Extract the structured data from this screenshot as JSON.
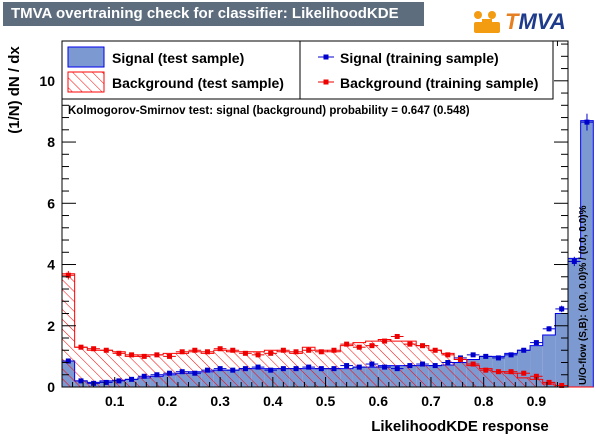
{
  "header": {
    "title": "TMVA overtraining check for classifier: LikelihoodKDE"
  },
  "logo": {
    "letter_t": "T",
    "letters_mva": "MVA"
  },
  "colors": {
    "signal_fill": "#7d99d1",
    "signal_edge": "#0000ee",
    "background_hatch": "#ff0000",
    "title_bar": "#5d6d7e",
    "signal_marker": "#0000cc",
    "background_marker": "#ee0000"
  },
  "chart_data": {
    "type": "bar",
    "xlabel": "LikelihoodKDE response",
    "ylabel": "(1/N) dN / dx",
    "xlim": [
      0.0,
      0.96
    ],
    "ylim": [
      0,
      11.3
    ],
    "bin_width": 0.024,
    "x_ticks": [
      0.1,
      0.2,
      0.3,
      0.4,
      0.5,
      0.6,
      0.7,
      0.8,
      0.9
    ],
    "y_ticks": [
      0,
      2,
      4,
      6,
      8,
      10
    ],
    "grid": false,
    "legend_position": "top",
    "ks_text": "Kolmogorov-Smirnov test: signal (background) probability = 0.647 (0.548)",
    "side_text": "U/O-flow (S,B): (0.0, 0.0)% / (0.0, 0.0)%",
    "series": [
      {
        "name": "Signal (test sample)",
        "kind": "filled-histogram",
        "values": [
          0.85,
          0.2,
          0.15,
          0.2,
          0.22,
          0.25,
          0.3,
          0.35,
          0.4,
          0.45,
          0.5,
          0.5,
          0.55,
          0.55,
          0.6,
          0.6,
          0.6,
          0.6,
          0.6,
          0.6,
          0.6,
          0.6,
          0.6,
          0.65,
          0.65,
          0.7,
          0.7,
          0.7,
          0.7,
          0.7,
          0.72,
          0.8,
          0.9,
          1.0,
          1.0,
          1.1,
          1.2,
          1.35,
          1.7,
          2.4,
          4.2,
          8.7
        ]
      },
      {
        "name": "Background (test sample)",
        "kind": "hatched-histogram",
        "values": [
          3.7,
          1.3,
          1.2,
          1.2,
          1.15,
          1.0,
          1.05,
          1.05,
          1.1,
          1.1,
          1.15,
          1.1,
          1.2,
          1.15,
          1.15,
          1.15,
          1.2,
          1.15,
          1.1,
          1.3,
          1.2,
          1.15,
          1.35,
          1.45,
          1.5,
          1.55,
          1.5,
          1.5,
          1.35,
          1.2,
          1.1,
          0.9,
          0.7,
          0.6,
          0.5,
          0.45,
          0.3,
          0.25,
          0.1,
          0.0,
          0.0,
          0.0
        ]
      },
      {
        "name": "Signal (training sample)",
        "kind": "points",
        "values": [
          0.85,
          0.2,
          0.12,
          0.15,
          0.2,
          0.25,
          0.35,
          0.4,
          0.45,
          0.5,
          0.45,
          0.55,
          0.6,
          0.55,
          0.6,
          0.65,
          0.55,
          0.6,
          0.6,
          0.65,
          0.6,
          0.6,
          0.7,
          0.65,
          0.75,
          0.65,
          0.6,
          0.7,
          0.75,
          0.7,
          0.8,
          0.95,
          1.05,
          1.0,
          0.95,
          1.05,
          1.2,
          1.45,
          1.9,
          2.55,
          4.1,
          8.65
        ]
      },
      {
        "name": "Background (training sample)",
        "kind": "points",
        "values": [
          3.65,
          1.3,
          1.25,
          1.2,
          1.1,
          1.05,
          1.0,
          1.05,
          1.0,
          1.15,
          1.2,
          1.15,
          1.25,
          1.2,
          1.1,
          1.05,
          1.1,
          1.2,
          1.15,
          1.2,
          1.15,
          1.2,
          1.4,
          1.3,
          1.35,
          1.5,
          1.65,
          1.4,
          1.35,
          1.2,
          1.05,
          0.9,
          0.75,
          0.55,
          0.5,
          0.5,
          0.45,
          0.35,
          0.15,
          0.05,
          0.0,
          0.0
        ]
      }
    ]
  }
}
